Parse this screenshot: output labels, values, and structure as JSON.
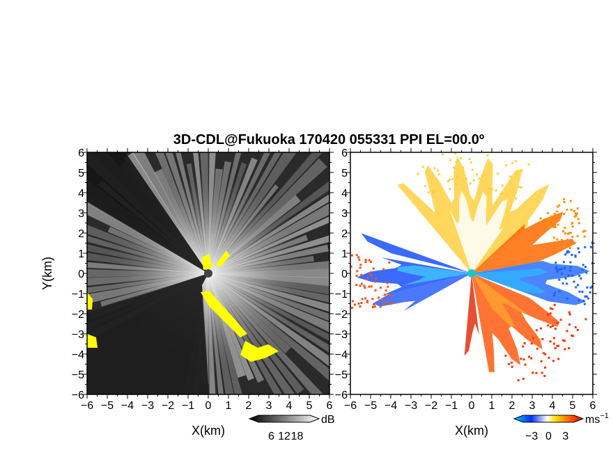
{
  "chart_data": [
    {
      "type": "heatmap",
      "title": "3D-CDL@Fukuoka 170420 055331 PPI EL=00.0º",
      "panel": "left",
      "quantity": "signal intensity (dB)",
      "xlabel": "X(km)",
      "ylabel": "Y(km)",
      "xlim": [
        -6,
        6
      ],
      "ylim": [
        -6,
        6
      ],
      "xticks": [
        "−6",
        "−5",
        "−4",
        "−3",
        "−2",
        "−1",
        "0",
        "1",
        "2",
        "3",
        "4",
        "5",
        "6"
      ],
      "yticks": [
        "6",
        "5",
        "4",
        "3",
        "2",
        "1",
        "0",
        "−1",
        "−2",
        "−3",
        "−4",
        "−5",
        "−6"
      ],
      "colorbar": {
        "ticks": [
          "6",
          "12",
          "18"
        ],
        "unit": "dB",
        "min": 0,
        "max": 24,
        "colors": [
          "#000000",
          "#ffffff"
        ]
      },
      "highlight_color": "#ffff00",
      "background_color": "#2a2a2a"
    },
    {
      "type": "heatmap",
      "panel": "right",
      "quantity": "Doppler velocity",
      "xlabel": "X(km)",
      "xlim": [
        -6,
        6
      ],
      "ylim": [
        -6,
        6
      ],
      "xticks": [
        "−6",
        "−5",
        "−4",
        "−3",
        "−2",
        "−1",
        "0",
        "1",
        "2",
        "3",
        "4",
        "5",
        "6"
      ],
      "yticks": [
        "6",
        "5",
        "4",
        "3",
        "2",
        "1",
        "0",
        "−1",
        "−2",
        "−3",
        "−4",
        "−5",
        "−6"
      ],
      "colorbar": {
        "ticks": [
          "−3",
          "0",
          "3"
        ],
        "unit": "ms",
        "unit_exp": "−1",
        "min": -4.5,
        "max": 4.5,
        "colors": [
          "#0030ff",
          "#00c8ff",
          "#ffffff",
          "#ffe000",
          "#ff7000",
          "#e00000"
        ]
      },
      "radar_site_color": "#19c8c8",
      "background_color": "#ffffff"
    }
  ]
}
